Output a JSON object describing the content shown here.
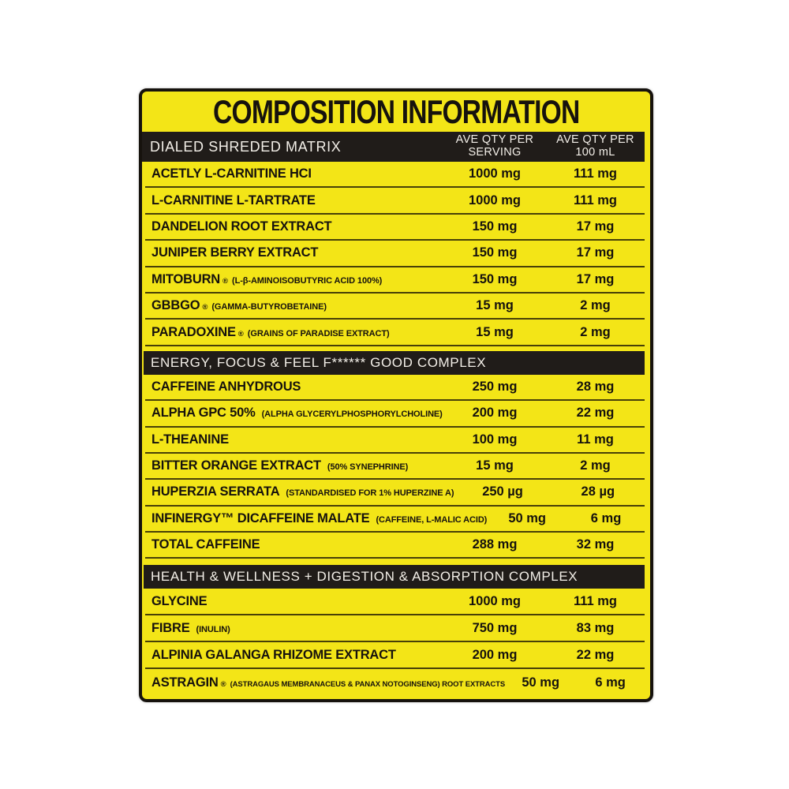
{
  "title": "COMPOSITION INFORMATION",
  "head": {
    "matrix_label": "DIALED SHREDED MATRIX",
    "col_serving": [
      "AVE QTY PER",
      "SERVING"
    ],
    "col_100ml": [
      "AVE QTY PER",
      "100 mL"
    ]
  },
  "colors": {
    "label_yellow": "#f3e517",
    "band_black": "#201c19",
    "text_black": "#16120d",
    "separator_olive": "#474007",
    "band_text": "#f3efe8"
  },
  "sections": [
    {
      "header": "DIALED SHREDED MATRIX",
      "rows": [
        {
          "name": "ACETLY L-CARNITINE HCI",
          "reg": "",
          "detail": "",
          "serving": "1000 mg",
          "per100": "111 mg"
        },
        {
          "name": "L-CARNITINE L-TARTRATE",
          "reg": "",
          "detail": "",
          "serving": "1000 mg",
          "per100": "111 mg"
        },
        {
          "name": "DANDELION ROOT EXTRACT",
          "reg": "",
          "detail": "",
          "serving": "150 mg",
          "per100": "17 mg"
        },
        {
          "name": "JUNIPER BERRY EXTRACT",
          "reg": "",
          "detail": "",
          "serving": "150 mg",
          "per100": "17 mg"
        },
        {
          "name": "MITOBURN",
          "reg": "®",
          "detail": "(L-β-AMINOISOBUTYRIC ACID 100%)",
          "serving": "150 mg",
          "per100": "17 mg"
        },
        {
          "name": "GBBGO",
          "reg": "®",
          "detail": "(GAMMA-BUTYROBETAINE)",
          "serving": "15 mg",
          "per100": "2 mg"
        },
        {
          "name": "PARADOXINE",
          "reg": "®",
          "detail": "(GRAINS OF PARADISE EXTRACT)",
          "serving": "15 mg",
          "per100": "2 mg"
        }
      ]
    },
    {
      "header": "ENERGY, FOCUS & FEEL F****** GOOD COMPLEX",
      "rows": [
        {
          "name": "CAFFEINE ANHYDROUS",
          "reg": "",
          "detail": "",
          "serving": "250 mg",
          "per100": "28 mg"
        },
        {
          "name": "ALPHA GPC 50%",
          "reg": "",
          "detail": "(ALPHA GLYCERYLPHOSPHORYLCHOLINE)",
          "serving": "200 mg",
          "per100": "22 mg"
        },
        {
          "name": "L-THEANINE",
          "reg": "",
          "detail": "",
          "serving": "100 mg",
          "per100": "11 mg"
        },
        {
          "name": "BITTER ORANGE EXTRACT",
          "reg": "",
          "detail": "(50% SYNEPHRINE)",
          "serving": "15 mg",
          "per100": "2 mg"
        },
        {
          "name": "HUPERZIA SERRATA",
          "reg": "",
          "detail": "(STANDARDISED FOR 1% HUPERZINE A)",
          "serving": "250 µg",
          "per100": "28 µg"
        },
        {
          "name": "INFINERGY™ DICAFFEINE MALATE",
          "reg": "",
          "detail": "(CAFFEINE, L-MALIC ACID)",
          "serving": "50 mg",
          "per100": "6 mg"
        },
        {
          "name": "TOTAL CAFFEINE",
          "reg": "",
          "detail": "",
          "serving": "288 mg",
          "per100": "32 mg"
        }
      ]
    },
    {
      "header": "HEALTH & WELLNESS + DIGESTION & ABSORPTION COMPLEX",
      "rows": [
        {
          "name": "GLYCINE",
          "reg": "",
          "detail": "",
          "serving": "1000 mg",
          "per100": "111 mg"
        },
        {
          "name": "FIBRE",
          "reg": "",
          "detail": "(INULIN)",
          "serving": "750 mg",
          "per100": "83 mg"
        },
        {
          "name": "ALPINIA GALANGA RHIZOME EXTRACT",
          "reg": "",
          "detail": "",
          "serving": "200 mg",
          "per100": "22 mg"
        },
        {
          "name": "ASTRAGIN",
          "reg": "®",
          "detail": "(ASTRAGAUS MEMBRANACEUS & PANAX NOTOGINSENG) ROOT EXTRACTS",
          "serving": "50 mg",
          "per100": "6 mg"
        }
      ]
    }
  ]
}
